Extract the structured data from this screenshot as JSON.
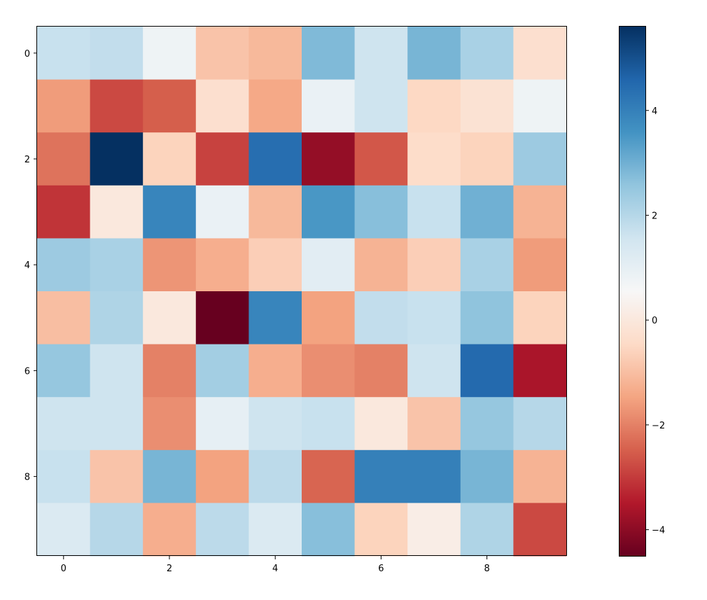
{
  "chart_data": {
    "type": "heatmap",
    "title": "",
    "xlabel": "",
    "ylabel": "",
    "colormap": "RdBu",
    "rows": 10,
    "cols": 10,
    "x_ticks": [
      0,
      2,
      4,
      6,
      8
    ],
    "y_ticks": [
      0,
      2,
      4,
      6,
      8
    ],
    "x_tick_labels": [
      "0",
      "2",
      "4",
      "6",
      "8"
    ],
    "y_tick_labels": [
      "0",
      "2",
      "4",
      "6",
      "8"
    ],
    "colorbar": {
      "range": [
        -4.5,
        5.6
      ],
      "ticks": [
        -4,
        -2,
        0,
        2,
        4
      ],
      "tick_labels": [
        "−4",
        "−2",
        "0",
        "2",
        "4"
      ]
    },
    "values": [
      [
        1.7,
        1.8,
        0.8,
        -0.9,
        -1.1,
        2.8,
        1.6,
        2.9,
        2.2,
        -0.3
      ],
      [
        -1.6,
        -2.8,
        -2.5,
        -0.3,
        -1.4,
        0.9,
        1.6,
        -0.5,
        -0.2,
        0.8
      ],
      [
        -2.2,
        5.6,
        -0.6,
        -2.9,
        4.4,
        -3.9,
        -2.6,
        -0.4,
        -0.6,
        2.4
      ],
      [
        -3.1,
        0.0,
        3.9,
        0.9,
        -1.1,
        3.5,
        2.7,
        1.7,
        3.0,
        -1.2
      ],
      [
        2.4,
        2.2,
        -1.7,
        -1.3,
        -0.7,
        1.1,
        -1.2,
        -0.7,
        2.2,
        -1.6
      ],
      [
        -1.0,
        2.1,
        0.0,
        -4.5,
        3.9,
        -1.5,
        1.8,
        1.7,
        2.6,
        -0.6
      ],
      [
        2.5,
        1.6,
        -2.0,
        2.3,
        -1.3,
        -1.8,
        -2.0,
        1.6,
        4.5,
        -3.6
      ],
      [
        1.6,
        1.6,
        -1.8,
        1.0,
        1.6,
        1.7,
        0.0,
        -0.9,
        2.5,
        2.0
      ],
      [
        1.7,
        -0.9,
        2.9,
        -1.5,
        1.9,
        -2.4,
        4.0,
        4.0,
        2.9,
        -1.2
      ],
      [
        1.3,
        2.0,
        -1.3,
        1.9,
        1.3,
        2.7,
        -0.6,
        0.2,
        2.1,
        -2.8
      ]
    ]
  }
}
